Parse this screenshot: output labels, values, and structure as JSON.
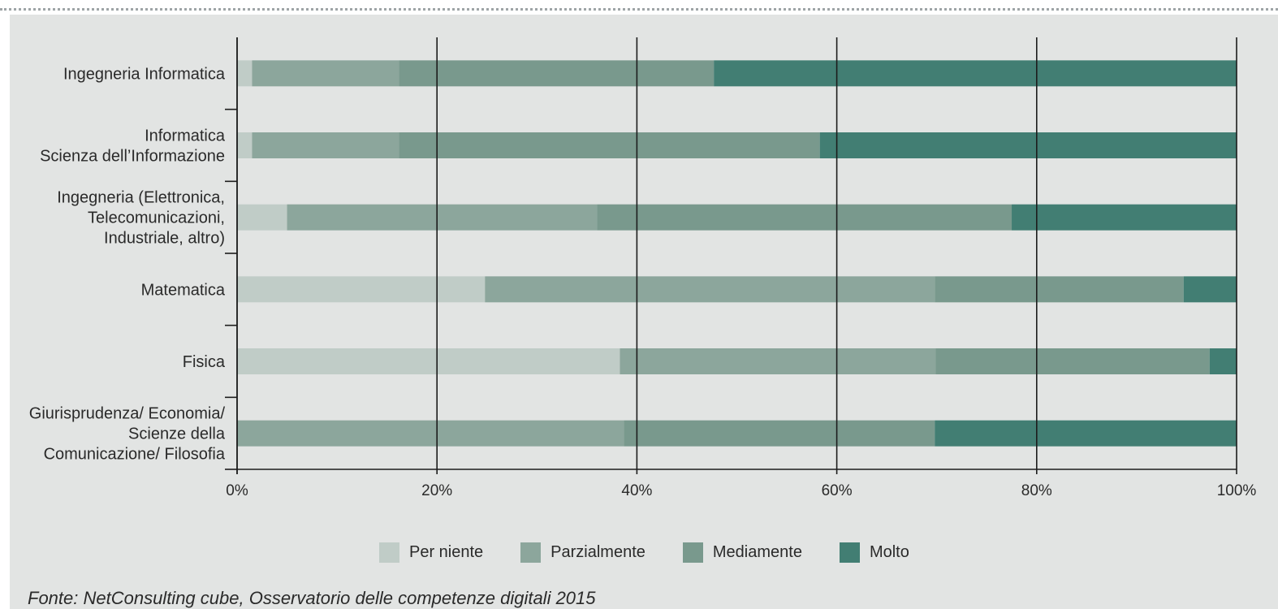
{
  "chart_data": {
    "type": "bar",
    "orientation": "horizontal",
    "stacked": true,
    "percent_stacked": true,
    "title": "",
    "xlabel": "",
    "ylabel": "",
    "xlim": [
      0,
      100
    ],
    "grid": true,
    "legend_position": "bottom",
    "x_ticks": [
      "0%",
      "20%",
      "40%",
      "60%",
      "80%",
      "100%"
    ],
    "categories": [
      "Ingegneria Informatica",
      "Informatica\nScienza dell’Informazione",
      "Ingegneria (Elettronica,\nTelecomunicazioni,\nIndustriale, altro)",
      "Matematica",
      "Fisica",
      "Giurisprudenza/ Economia/\nScienze della\nComunicazione/ Filosofia"
    ],
    "series": [
      {
        "name": "Per niente",
        "color": "#c0ccc7",
        "values": [
          1.5,
          1.5,
          5.0,
          24.8,
          38.3,
          0.0
        ]
      },
      {
        "name": "Parzialmente",
        "color": "#8ca69c",
        "values": [
          14.7,
          14.7,
          31.0,
          45.0,
          31.6,
          38.7
        ]
      },
      {
        "name": "Mediamente",
        "color": "#79998d",
        "values": [
          31.5,
          42.1,
          41.5,
          24.9,
          27.4,
          31.1
        ]
      },
      {
        "name": "Molto",
        "color": "#427e73",
        "values": [
          52.3,
          41.7,
          22.5,
          5.3,
          2.7,
          30.2
        ]
      }
    ]
  },
  "source_note": "Fonte: NetConsulting cube, Osservatorio delle competenze digitali 2015"
}
